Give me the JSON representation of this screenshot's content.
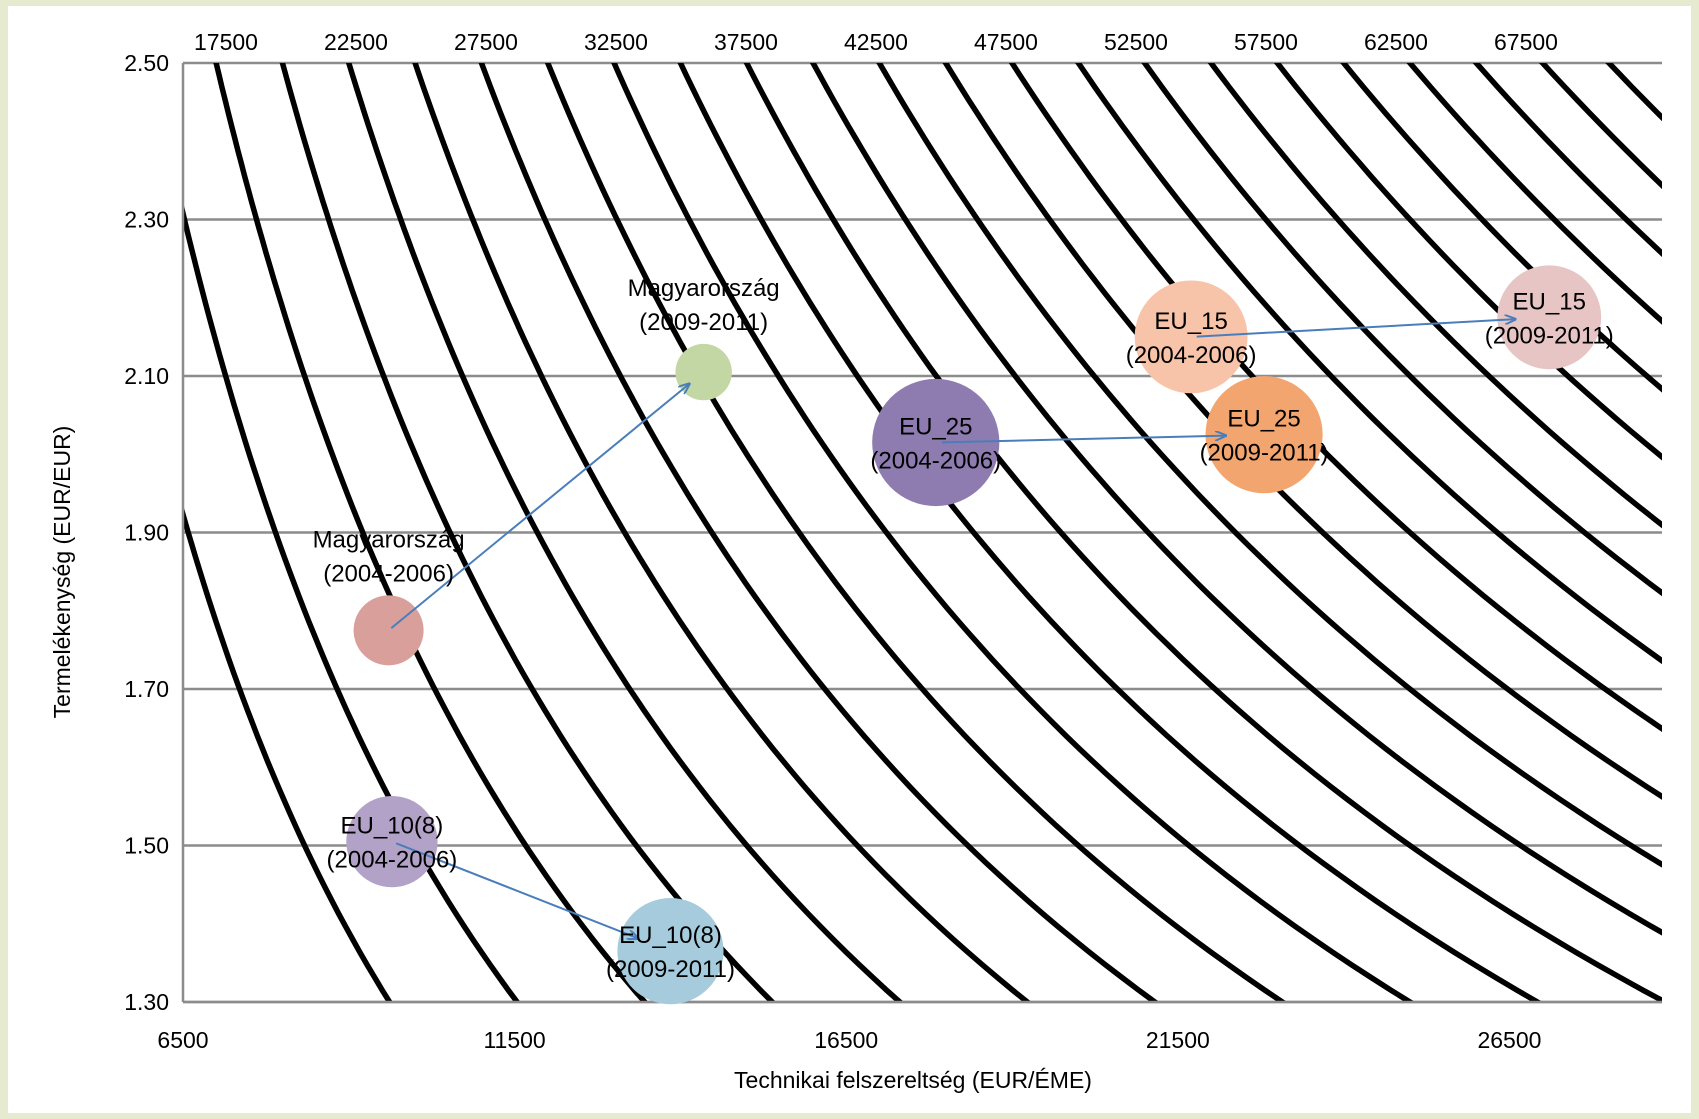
{
  "chart_data": {
    "type": "bubble",
    "xlabel": "Technikai felszereltség (EUR/ÉME)",
    "ylabel": "Termelékenység (EUR/EUR)",
    "xlim": [
      6500,
      28800
    ],
    "ylim": [
      1.3,
      2.5
    ],
    "x_ticks": [
      "6500",
      "11500",
      "16500",
      "21500",
      "26500"
    ],
    "y_ticks": [
      "1.30",
      "1.50",
      "1.70",
      "1.90",
      "2.10",
      "2.30",
      "2.50"
    ],
    "grid": "horizontal",
    "isoquant_levels": [
      12500,
      15000,
      17500,
      20000,
      22500,
      25000,
      27500,
      30000,
      32500,
      35000,
      37500,
      40000,
      42500,
      45000,
      47500,
      50000,
      52500,
      55000,
      57500,
      60000,
      62500,
      65000,
      67500,
      70000,
      72500,
      75000,
      77500,
      80000
    ],
    "top_labels": [
      "17500",
      "22500",
      "27500",
      "32500",
      "37500",
      "42500",
      "47500",
      "52500",
      "57500",
      "62500",
      "67500"
    ],
    "bubbles": [
      {
        "name": "Magyarország",
        "period": "(2004-2006)",
        "x": 9600,
        "y": 1.775,
        "size": 1.0,
        "color": "#d9a09b"
      },
      {
        "name": "Magyarország",
        "period": "(2009-2011)",
        "x": 14350,
        "y": 2.105,
        "size": 0.65,
        "color": "#c3d7a4"
      },
      {
        "name": "EU_10(8)",
        "period": "(2004-2006)",
        "x": 9650,
        "y": 1.505,
        "size": 1.7,
        "color": "#b3a2c7"
      },
      {
        "name": "EU_10(8)",
        "period": "(2009-2011)",
        "x": 13850,
        "y": 1.365,
        "size": 2.3,
        "color": "#a5cbdc"
      },
      {
        "name": "EU_25",
        "period": "(2004-2006)",
        "x": 17850,
        "y": 2.015,
        "size": 3.3,
        "color": "#8e7cb0"
      },
      {
        "name": "EU_25",
        "period": "(2009-2011)",
        "x": 22800,
        "y": 2.025,
        "size": 2.8,
        "color": "#f2a56e"
      },
      {
        "name": "EU_15",
        "period": "(2004-2006)",
        "x": 21700,
        "y": 2.15,
        "size": 2.6,
        "color": "#f7c4a9"
      },
      {
        "name": "EU_15",
        "period": "(2009-2011)",
        "x": 27100,
        "y": 2.175,
        "size": 2.2,
        "color": "#e6c5c4"
      }
    ],
    "arrows": [
      [
        0,
        1
      ],
      [
        2,
        3
      ],
      [
        4,
        5
      ],
      [
        6,
        7
      ]
    ]
  }
}
